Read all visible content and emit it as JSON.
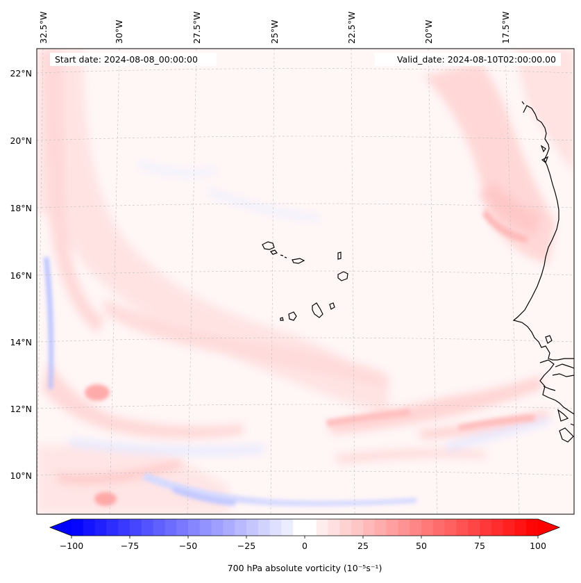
{
  "map": {
    "start_date": "Start date: 2024-08-08_00:00:00",
    "valid_date": "Valid_date: 2024-08-10T02:00:00.00",
    "lon_labels": [
      "32.5°W",
      "30°W",
      "27.5°W",
      "25°W",
      "22.5°W",
      "20°W",
      "17.5°W"
    ],
    "lat_labels": [
      "22°N",
      "20°N",
      "18°N",
      "16°N",
      "14°N",
      "12°N",
      "10°N"
    ],
    "gridlines": "dashed",
    "coastline_color": "#000000",
    "features": [
      "Cabo Verde islands",
      "West African coastline"
    ]
  },
  "colorbar": {
    "label": "700 hPa absolute vorticity (10⁻⁵s⁻¹)",
    "ticks": [
      "−100",
      "−75",
      "−50",
      "−25",
      "0",
      "25",
      "50",
      "75",
      "100"
    ],
    "min": -100,
    "max": 100,
    "levels": 41,
    "cmap": "bwr",
    "low_color": "#0000ff",
    "mid_color": "#ffffff",
    "high_color": "#ff0000"
  }
}
